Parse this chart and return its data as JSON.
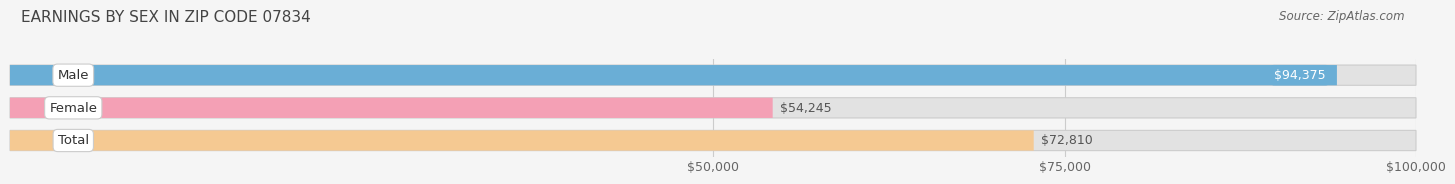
{
  "title": "EARNINGS BY SEX IN ZIP CODE 07834",
  "source": "Source: ZipAtlas.com",
  "categories": [
    "Male",
    "Female",
    "Total"
  ],
  "values": [
    94375,
    54245,
    72810
  ],
  "bar_colors": [
    "#6aaed6",
    "#f4a0b5",
    "#f5c992"
  ],
  "label_inside": [
    true,
    false,
    false
  ],
  "xlim_min": 0,
  "xlim_max": 100000,
  "axis_min": 50000,
  "xticks": [
    50000,
    75000,
    100000
  ],
  "xtick_labels": [
    "$50,000",
    "$75,000",
    "$100,000"
  ],
  "background_color": "#f5f5f5",
  "bar_bg_color": "#e2e2e2",
  "value_labels": [
    "$94,375",
    "$54,245",
    "$72,810"
  ],
  "title_fontsize": 11,
  "source_fontsize": 8.5,
  "tick_fontsize": 9,
  "bar_label_fontsize": 9,
  "category_fontsize": 9.5
}
